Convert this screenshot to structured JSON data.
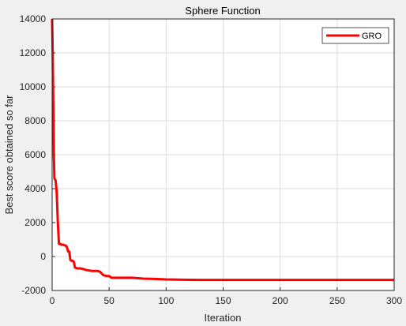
{
  "chart_data": {
    "type": "line",
    "title": "Sphere Function",
    "xlabel": "Iteration",
    "ylabel": "Best score obtained so far",
    "xlim": [
      0,
      300
    ],
    "ylim": [
      -2000,
      14000
    ],
    "xticks": [
      "0",
      "50",
      "100",
      "150",
      "200",
      "250",
      "300"
    ],
    "yticks": [
      "-2000",
      "0",
      "2000",
      "4000",
      "6000",
      "8000",
      "10000",
      "12000",
      "14000"
    ],
    "grid": true,
    "legend_position": "top-right",
    "series": [
      {
        "name": "GRO",
        "color": "#ff0000",
        "x": [
          0,
          0.5,
          1,
          1.5,
          2,
          3,
          4,
          5,
          6,
          7,
          8,
          9,
          10,
          11,
          12,
          13,
          14,
          15,
          16,
          17,
          18,
          19,
          20,
          22,
          25,
          28,
          30,
          35,
          40,
          42,
          45,
          48,
          50,
          52,
          60,
          70,
          80,
          90,
          100,
          120,
          140,
          160,
          200,
          250,
          300
        ],
        "values": [
          14000,
          12000,
          9000,
          6000,
          4600,
          4500,
          3800,
          2000,
          750,
          750,
          700,
          700,
          700,
          650,
          650,
          550,
          300,
          300,
          -200,
          -250,
          -250,
          -300,
          -650,
          -700,
          -700,
          -750,
          -800,
          -850,
          -850,
          -900,
          -1100,
          -1150,
          -1150,
          -1250,
          -1250,
          -1250,
          -1300,
          -1320,
          -1350,
          -1370,
          -1380,
          -1380,
          -1380,
          -1380,
          -1380
        ]
      }
    ]
  }
}
